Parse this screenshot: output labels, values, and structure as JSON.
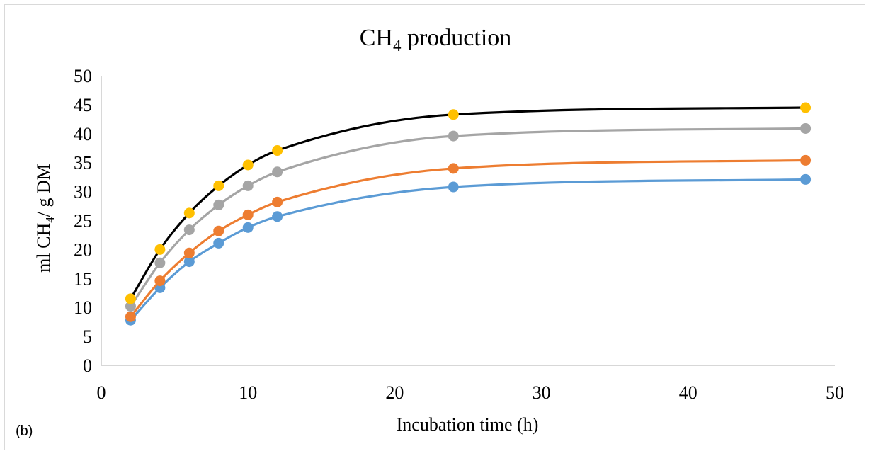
{
  "chart_data": {
    "type": "line",
    "title": "CH",
    "title_sub": "4",
    "title_rest": " production",
    "ylabel": "ml CH",
    "ylabel_sub": "4",
    "ylabel_rest": "/ g DM",
    "xlabel": "Incubation time (h)",
    "panel_label": "(b)",
    "xlim": [
      0,
      50
    ],
    "ylim": [
      0,
      50
    ],
    "xticks": [
      0,
      10,
      20,
      30,
      40,
      50
    ],
    "yticks": [
      0,
      5,
      10,
      15,
      20,
      25,
      30,
      35,
      40,
      45,
      50
    ],
    "x": [
      2,
      4,
      6,
      8,
      10,
      12,
      24,
      48
    ],
    "grid": false,
    "legend": "none",
    "series": [
      {
        "values": [
          7.8,
          13.4,
          17.9,
          21.1,
          23.8,
          25.7,
          30.8,
          32.1
        ],
        "line_color": "#5b9bd5",
        "marker_color": "#5b9bd5"
      },
      {
        "values": [
          8.4,
          14.6,
          19.4,
          23.2,
          26.0,
          28.2,
          34.0,
          35.4
        ],
        "line_color": "#ed7d31",
        "marker_color": "#ed7d31"
      },
      {
        "values": [
          10.2,
          17.7,
          23.4,
          27.7,
          31.0,
          33.4,
          39.6,
          40.9
        ],
        "line_color": "#a5a5a5",
        "marker_color": "#a5a5a5"
      },
      {
        "values": [
          11.5,
          20.0,
          26.3,
          31.0,
          34.6,
          37.1,
          43.3,
          44.5
        ],
        "line_color": "#000000",
        "marker_color": "#ffc000"
      }
    ]
  }
}
